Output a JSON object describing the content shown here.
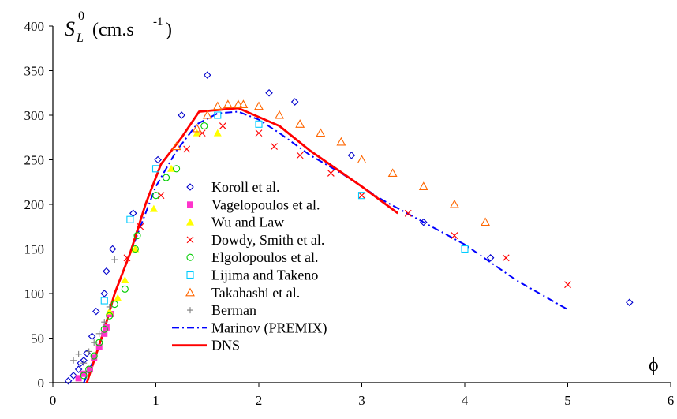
{
  "chart_data": {
    "type": "scatter",
    "title": "",
    "ylabel": {
      "symbol": "S",
      "sup": "0",
      "sub": "L",
      "units": "(cm.s",
      "units_exp": "-1",
      "units_close": ")"
    },
    "xlabel": "ϕ",
    "xlim": [
      0,
      6
    ],
    "ylim": [
      0,
      400
    ],
    "x_ticks": [
      0,
      1,
      2,
      3,
      4,
      5,
      6
    ],
    "y_ticks": [
      0,
      50,
      100,
      150,
      200,
      250,
      300,
      350,
      400
    ],
    "x_tick_labels": [
      "0",
      "1",
      "2",
      "3",
      "4",
      "5",
      "6"
    ],
    "y_tick_labels": [
      "0",
      "50",
      "100",
      "150",
      "200",
      "250",
      "300",
      "350",
      "400"
    ],
    "grid": false,
    "legend_position": "center",
    "series": [
      {
        "name": "Koroll et al.",
        "marker": "diamond",
        "color": "#0000cc",
        "points": [
          [
            0.15,
            2
          ],
          [
            0.2,
            8
          ],
          [
            0.25,
            15
          ],
          [
            0.27,
            22
          ],
          [
            0.3,
            25
          ],
          [
            0.33,
            33
          ],
          [
            0.38,
            52
          ],
          [
            0.42,
            80
          ],
          [
            0.5,
            100
          ],
          [
            0.52,
            125
          ],
          [
            0.58,
            150
          ],
          [
            0.78,
            190
          ],
          [
            1.02,
            250
          ],
          [
            1.25,
            300
          ],
          [
            1.5,
            345
          ],
          [
            2.1,
            325
          ],
          [
            2.35,
            315
          ],
          [
            2.9,
            255
          ],
          [
            3.6,
            180
          ],
          [
            4.25,
            140
          ],
          [
            5.6,
            90
          ]
        ]
      },
      {
        "name": "Vagelopoulos et al.",
        "marker": "square-filled",
        "color": "#ff33cc",
        "points": [
          [
            0.25,
            5
          ],
          [
            0.3,
            10
          ],
          [
            0.36,
            15
          ],
          [
            0.4,
            28
          ],
          [
            0.45,
            40
          ],
          [
            0.5,
            55
          ],
          [
            0.52,
            62
          ],
          [
            0.56,
            77
          ]
        ]
      },
      {
        "name": "Wu and Law",
        "marker": "triangle-filled",
        "color": "#ffff00",
        "points": [
          [
            0.55,
            80
          ],
          [
            0.63,
            95
          ],
          [
            0.7,
            115
          ],
          [
            0.8,
            150
          ],
          [
            0.98,
            195
          ],
          [
            1.15,
            240
          ],
          [
            1.4,
            280
          ],
          [
            1.6,
            280
          ]
        ]
      },
      {
        "name": "Dowdy, Smith et al.",
        "marker": "x",
        "color": "#ff0000",
        "points": [
          [
            0.72,
            140
          ],
          [
            0.85,
            175
          ],
          [
            1.05,
            210
          ],
          [
            1.3,
            262
          ],
          [
            1.45,
            280
          ],
          [
            1.65,
            288
          ],
          [
            2.0,
            280
          ],
          [
            2.15,
            265
          ],
          [
            2.4,
            255
          ],
          [
            2.7,
            235
          ],
          [
            3.0,
            210
          ],
          [
            3.45,
            190
          ],
          [
            3.9,
            165
          ],
          [
            4.4,
            140
          ],
          [
            5.0,
            110
          ]
        ]
      },
      {
        "name": "Elgolopoulos et al.",
        "marker": "circle",
        "color": "#00cc00",
        "points": [
          [
            0.3,
            8
          ],
          [
            0.35,
            15
          ],
          [
            0.4,
            30
          ],
          [
            0.45,
            45
          ],
          [
            0.5,
            60
          ],
          [
            0.55,
            75
          ],
          [
            0.6,
            88
          ],
          [
            0.7,
            105
          ],
          [
            0.8,
            150
          ],
          [
            0.82,
            165
          ],
          [
            1.0,
            210
          ],
          [
            1.1,
            230
          ],
          [
            1.2,
            240
          ],
          [
            1.47,
            288
          ]
        ]
      },
      {
        "name": "Lijima and Takeno",
        "marker": "square",
        "color": "#00ccff",
        "points": [
          [
            0.5,
            92
          ],
          [
            0.75,
            183
          ],
          [
            1.0,
            240
          ],
          [
            1.6,
            300
          ],
          [
            2.0,
            290
          ],
          [
            3.0,
            210
          ],
          [
            4.0,
            150
          ]
        ]
      },
      {
        "name": "Takahashi et al.",
        "marker": "triangle",
        "color": "#ff6600",
        "points": [
          [
            1.2,
            265
          ],
          [
            1.4,
            285
          ],
          [
            1.5,
            300
          ],
          [
            1.6,
            310
          ],
          [
            1.7,
            312
          ],
          [
            1.8,
            312
          ],
          [
            1.85,
            312
          ],
          [
            2.0,
            310
          ],
          [
            2.2,
            300
          ],
          [
            2.4,
            290
          ],
          [
            2.6,
            280
          ],
          [
            2.8,
            270
          ],
          [
            3.0,
            250
          ],
          [
            3.3,
            235
          ],
          [
            3.6,
            220
          ],
          [
            3.9,
            200
          ],
          [
            4.2,
            180
          ]
        ]
      },
      {
        "name": "Berman",
        "marker": "plus",
        "color": "#808080",
        "points": [
          [
            0.2,
            25
          ],
          [
            0.25,
            32
          ],
          [
            0.3,
            22
          ],
          [
            0.35,
            35
          ],
          [
            0.4,
            45
          ],
          [
            0.45,
            55
          ],
          [
            0.5,
            68
          ],
          [
            0.55,
            85
          ],
          [
            0.6,
            138
          ]
        ]
      },
      {
        "name": "Marinov (PREMIX)",
        "marker": "line-dashdot",
        "color": "#0000ff",
        "points": [
          [
            0.3,
            0
          ],
          [
            0.45,
            40
          ],
          [
            0.6,
            100
          ],
          [
            0.8,
            160
          ],
          [
            1.0,
            220
          ],
          [
            1.2,
            260
          ],
          [
            1.4,
            290
          ],
          [
            1.6,
            302
          ],
          [
            1.8,
            304
          ],
          [
            2.0,
            295
          ],
          [
            2.2,
            280
          ],
          [
            2.5,
            255
          ],
          [
            2.8,
            235
          ],
          [
            3.2,
            205
          ],
          [
            3.6,
            180
          ],
          [
            4.0,
            155
          ],
          [
            4.5,
            115
          ],
          [
            5.0,
            82
          ]
        ]
      },
      {
        "name": "DNS",
        "marker": "line-solid",
        "color": "#ff0000",
        "points": [
          [
            0.33,
            0
          ],
          [
            0.5,
            60
          ],
          [
            0.6,
            100
          ],
          [
            0.75,
            145
          ],
          [
            0.9,
            200
          ],
          [
            1.05,
            245
          ],
          [
            1.25,
            275
          ],
          [
            1.42,
            304
          ],
          [
            1.8,
            308
          ],
          [
            2.2,
            288
          ],
          [
            2.5,
            260
          ],
          [
            3.0,
            220
          ],
          [
            3.35,
            190
          ]
        ]
      }
    ]
  }
}
